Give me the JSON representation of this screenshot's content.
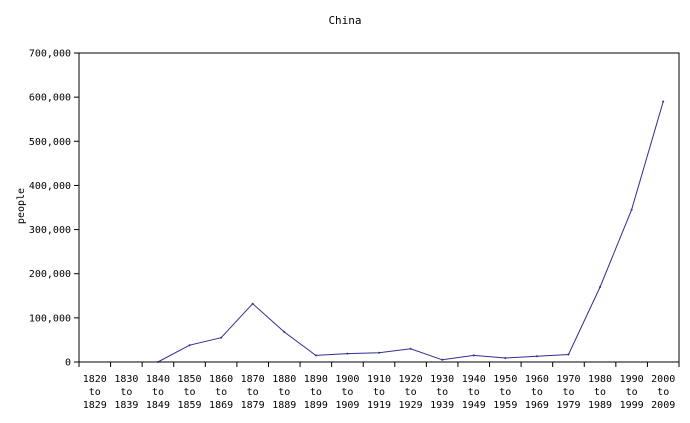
{
  "chart_data": {
    "type": "line",
    "title": "China",
    "xlabel": "",
    "ylabel": "people",
    "ylim": [
      0,
      700000
    ],
    "yticks": [
      "0",
      "100,000",
      "200,000",
      "300,000",
      "400,000",
      "500,000",
      "600,000",
      "700,000"
    ],
    "categories": [
      [
        "1820",
        "to",
        "1829"
      ],
      [
        "1830",
        "to",
        "1839"
      ],
      [
        "1840",
        "to",
        "1849"
      ],
      [
        "1850",
        "to",
        "1859"
      ],
      [
        "1860",
        "to",
        "1869"
      ],
      [
        "1870",
        "to",
        "1879"
      ],
      [
        "1880",
        "to",
        "1889"
      ],
      [
        "1890",
        "to",
        "1899"
      ],
      [
        "1900",
        "to",
        "1909"
      ],
      [
        "1910",
        "to",
        "1919"
      ],
      [
        "1920",
        "to",
        "1929"
      ],
      [
        "1930",
        "to",
        "1939"
      ],
      [
        "1940",
        "to",
        "1949"
      ],
      [
        "1950",
        "to",
        "1959"
      ],
      [
        "1960",
        "to",
        "1969"
      ],
      [
        "1970",
        "to",
        "1979"
      ],
      [
        "1980",
        "to",
        "1989"
      ],
      [
        "1990",
        "to",
        "1999"
      ],
      [
        "2000",
        "to",
        "2009"
      ]
    ],
    "series": [
      {
        "values": [
          null,
          null,
          0,
          38000,
          55000,
          132000,
          68000,
          15000,
          19000,
          21000,
          30000,
          5000,
          15000,
          9000,
          13000,
          17000,
          170000,
          345000,
          590000
        ]
      }
    ],
    "line_color": "#2e2e8f",
    "grid": false,
    "legend": "none"
  }
}
